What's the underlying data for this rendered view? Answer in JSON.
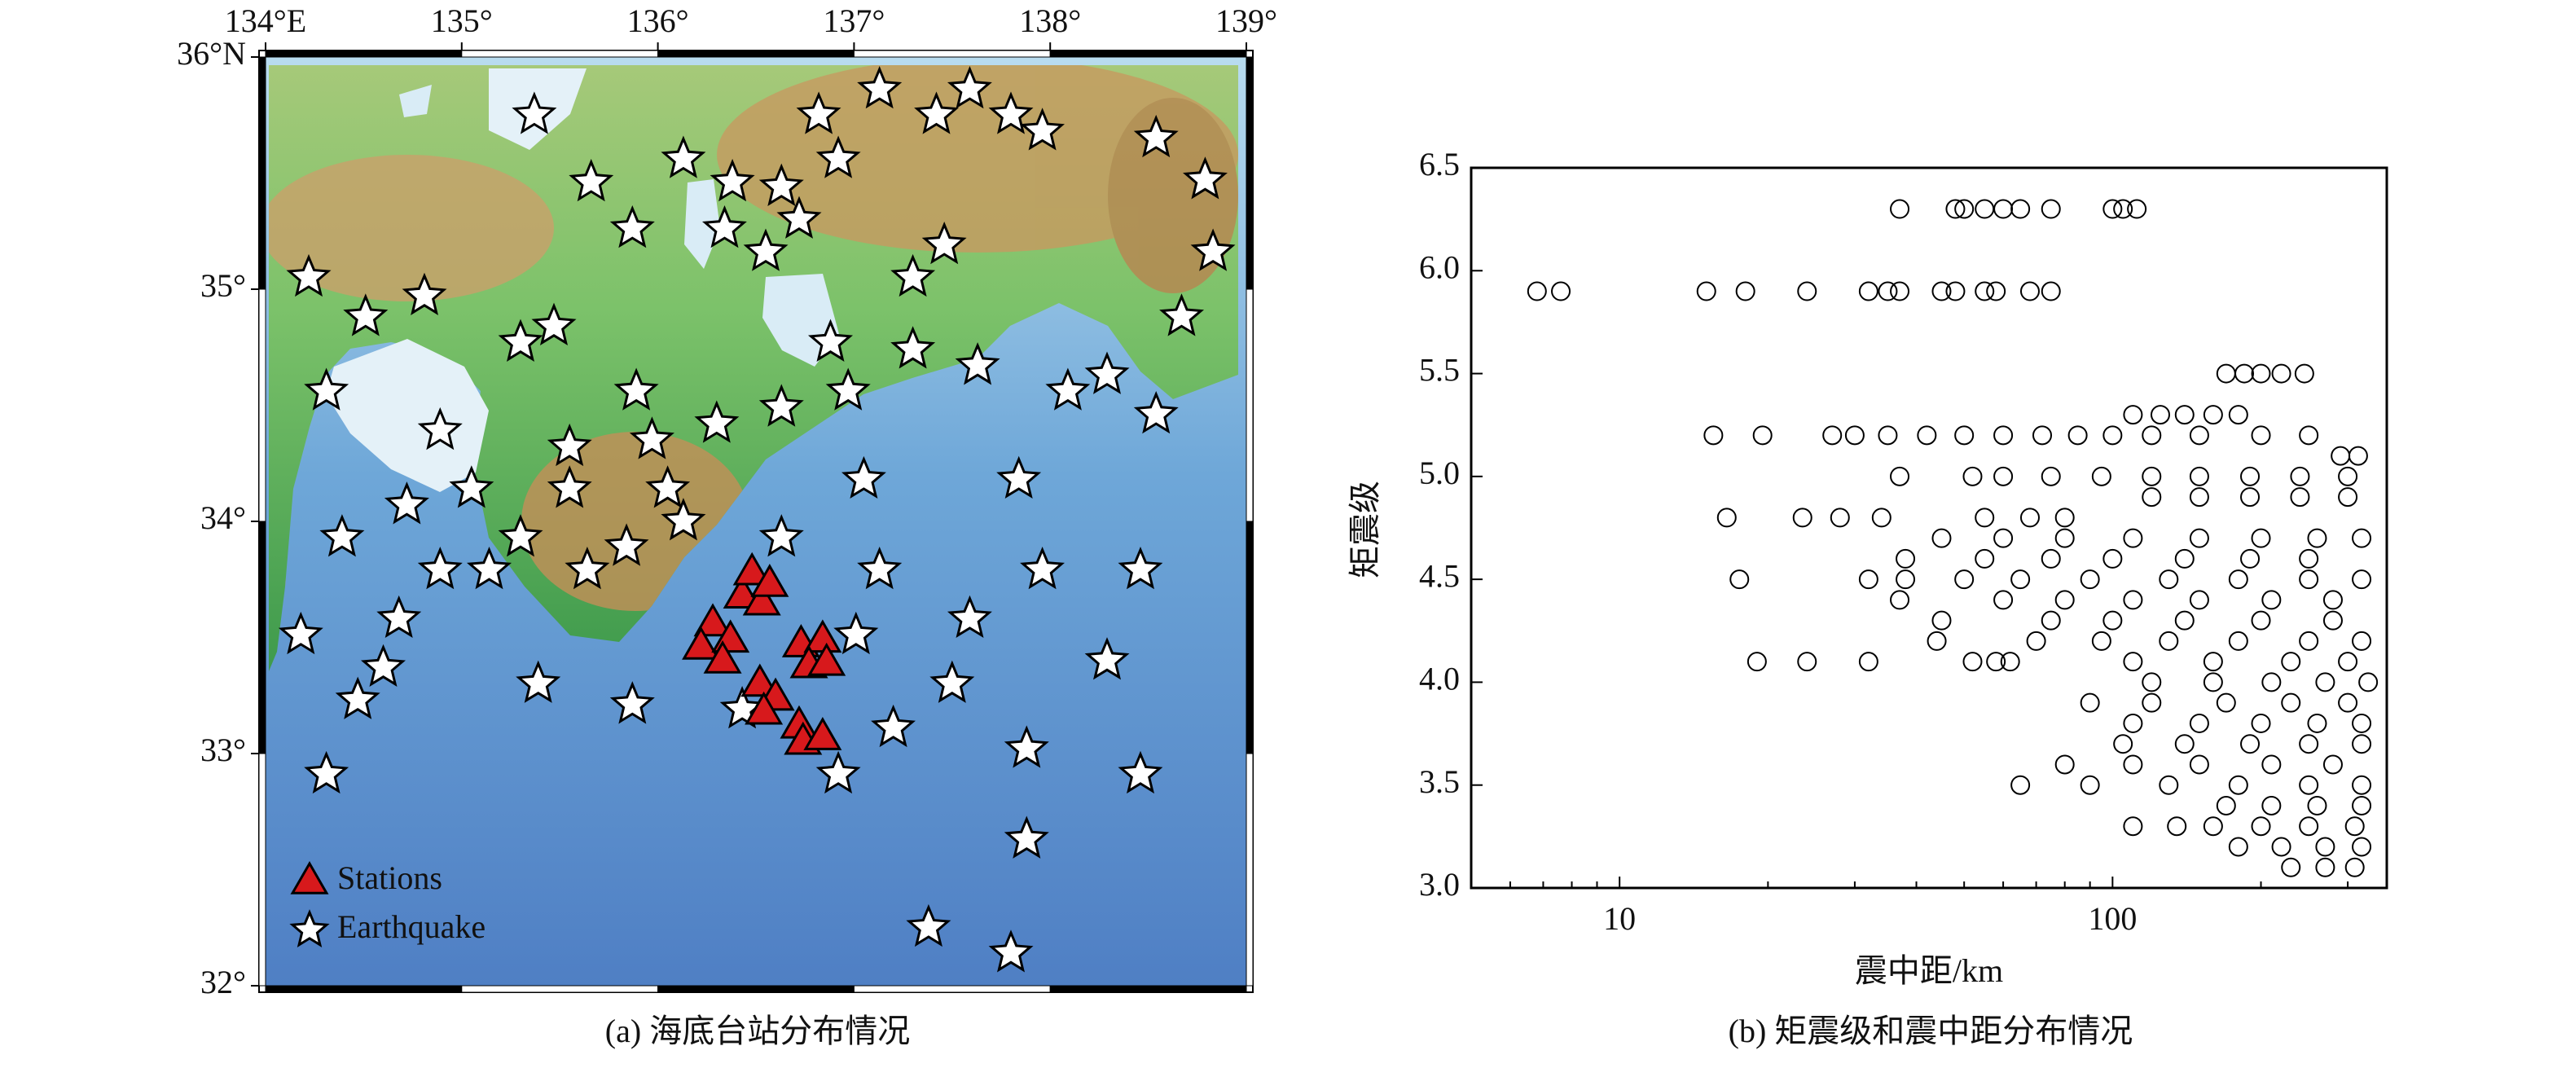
{
  "chart_data": [
    {
      "type": "map",
      "caption": "(a) 海底台站分布情况",
      "xlim": [
        134,
        139
      ],
      "ylim": [
        32,
        36
      ],
      "xticks": [
        {
          "value": 134,
          "label": "134°E"
        },
        {
          "value": 135,
          "label": "135°"
        },
        {
          "value": 136,
          "label": "136°"
        },
        {
          "value": 137,
          "label": "137°"
        },
        {
          "value": 138,
          "label": "138°"
        },
        {
          "value": 139,
          "label": "139°"
        }
      ],
      "yticks": [
        {
          "value": 32,
          "label": "32°"
        },
        {
          "value": 33,
          "label": "33°"
        },
        {
          "value": 34,
          "label": "34°"
        },
        {
          "value": 35,
          "label": "35°"
        },
        {
          "value": 36,
          "label": "36°N"
        }
      ],
      "series": [
        {
          "name": "Stations",
          "color": "#d7191c",
          "marker": "triangle",
          "x": [
            136.28,
            136.22,
            136.37,
            136.33,
            136.43,
            136.48,
            136.53,
            136.57,
            136.52,
            136.6,
            136.54,
            136.73,
            136.84,
            136.77,
            136.86,
            136.72,
            136.74,
            136.84
          ],
          "y": [
            33.56,
            33.46,
            33.49,
            33.4,
            33.68,
            33.78,
            33.65,
            33.73,
            33.3,
            33.24,
            33.18,
            33.47,
            33.49,
            33.38,
            33.39,
            33.12,
            33.05,
            33.07
          ]
        },
        {
          "name": "Earthquake",
          "color": "#ffffff",
          "marker": "star",
          "x": [
            135.37,
            135.66,
            135.87,
            136.13,
            136.38,
            136.63,
            136.92,
            136.82,
            137.13,
            137.42,
            137.59,
            137.8,
            137.96,
            138.54,
            138.79,
            138.83,
            138.67,
            138.54,
            138.29,
            138.09,
            137.84,
            137.96,
            138.46,
            138.29,
            137.88,
            138.46,
            137.88,
            137.38,
            137.8,
            137.2,
            136.92,
            137.5,
            137.59,
            137.01,
            137.13,
            136.63,
            137.05,
            136.97,
            136.88,
            137.3,
            137.63,
            137.3,
            137.46,
            136.72,
            136.55,
            136.34,
            135.89,
            135.97,
            136.05,
            135.84,
            135.55,
            135.3,
            135.05,
            135.14,
            134.89,
            134.68,
            134.6,
            134.47,
            134.31,
            134.18,
            134.22,
            134.51,
            134.81,
            134.89,
            134.72,
            134.39,
            134.31,
            135.39,
            135.87,
            135.64,
            135.47,
            135.3,
            135.55,
            136.3,
            136.63,
            136.13,
            136.43
          ],
          "y": [
            35.75,
            35.46,
            35.26,
            35.56,
            35.46,
            35.44,
            35.56,
            35.75,
            35.86,
            35.75,
            35.86,
            35.75,
            35.68,
            35.65,
            35.47,
            35.16,
            34.88,
            34.46,
            34.63,
            34.56,
            34.18,
            33.79,
            33.79,
            33.4,
            33.02,
            32.91,
            32.63,
            32.25,
            32.14,
            33.11,
            32.91,
            33.3,
            33.58,
            33.51,
            33.79,
            33.93,
            34.18,
            34.56,
            34.77,
            34.74,
            34.67,
            35.05,
            35.19,
            35.3,
            35.16,
            35.26,
            34.56,
            34.35,
            34.14,
            33.89,
            34.14,
            33.93,
            34.14,
            33.79,
            33.79,
            33.58,
            33.37,
            33.23,
            32.91,
            33.51,
            35.05,
            34.88,
            34.97,
            34.39,
            34.07,
            33.93,
            34.56,
            33.3,
            33.21,
            33.79,
            34.84,
            34.77,
            34.32,
            34.42,
            34.49,
            34.0,
            33.19
          ]
        }
      ]
    },
    {
      "type": "scatter",
      "caption": "(b) 矩震级和震中距分布情况",
      "xlabel": "震中距/km",
      "ylabel": "矩震级",
      "xscale": "log",
      "xlim": [
        5,
        360
      ],
      "xticks": [
        10,
        100
      ],
      "xminorticks": [
        6,
        7,
        8,
        9,
        20,
        30,
        40,
        50,
        60,
        70,
        80,
        90,
        200,
        300
      ],
      "ylim": [
        3,
        6.5
      ],
      "yticks": [
        {
          "value": 3,
          "label": "3.0"
        },
        {
          "value": 3.5,
          "label": "3.5"
        },
        {
          "value": 4,
          "label": "4.0"
        },
        {
          "value": 4.5,
          "label": "4.5"
        },
        {
          "value": 5,
          "label": "5.0"
        },
        {
          "value": 5.5,
          "label": "5.5"
        },
        {
          "value": 6,
          "label": "6.0"
        },
        {
          "value": 6.5,
          "label": "6.5"
        }
      ],
      "marker": "circle",
      "color": "#000000",
      "x": [
        37,
        48,
        50,
        55,
        60,
        65,
        75,
        100,
        105,
        112,
        6.8,
        7.6,
        15,
        18,
        24,
        32,
        35,
        37,
        45,
        48,
        55,
        58,
        68,
        75,
        170,
        185,
        200,
        220,
        245,
        110,
        125,
        140,
        160,
        180,
        15.5,
        19.5,
        27,
        30,
        35,
        42,
        50,
        60,
        72,
        85,
        100,
        120,
        150,
        200,
        250,
        290,
        315,
        37,
        52,
        60,
        75,
        95,
        120,
        150,
        190,
        240,
        300,
        120,
        150,
        190,
        240,
        300,
        16.5,
        23.5,
        28,
        34,
        55,
        68,
        80,
        45,
        60,
        80,
        110,
        150,
        200,
        260,
        320,
        38,
        55,
        75,
        100,
        140,
        190,
        250,
        17.5,
        32,
        38,
        50,
        65,
        90,
        130,
        180,
        250,
        320,
        37,
        60,
        80,
        110,
        150,
        210,
        280,
        45,
        75,
        100,
        140,
        200,
        280,
        44,
        70,
        95,
        130,
        180,
        250,
        320,
        19,
        24,
        32,
        52,
        58,
        62,
        110,
        160,
        230,
        300,
        120,
        160,
        210,
        270,
        330,
        90,
        120,
        170,
        230,
        300,
        110,
        150,
        200,
        260,
        320,
        105,
        140,
        190,
        250,
        320,
        80,
        110,
        150,
        210,
        280,
        65,
        90,
        130,
        180,
        250,
        320,
        170,
        210,
        260,
        320,
        110,
        135,
        160,
        200,
        250,
        310,
        180,
        220,
        270,
        320,
        230,
        270,
        310
      ],
      "y": [
        6.3,
        6.3,
        6.3,
        6.3,
        6.3,
        6.3,
        6.3,
        6.3,
        6.3,
        6.3,
        5.9,
        5.9,
        5.9,
        5.9,
        5.9,
        5.9,
        5.9,
        5.9,
        5.9,
        5.9,
        5.9,
        5.9,
        5.9,
        5.9,
        5.5,
        5.5,
        5.5,
        5.5,
        5.5,
        5.3,
        5.3,
        5.3,
        5.3,
        5.3,
        5.2,
        5.2,
        5.2,
        5.2,
        5.2,
        5.2,
        5.2,
        5.2,
        5.2,
        5.2,
        5.2,
        5.2,
        5.2,
        5.2,
        5.2,
        5.1,
        5.1,
        5.0,
        5.0,
        5.0,
        5.0,
        5.0,
        5.0,
        5.0,
        5.0,
        5.0,
        5.0,
        4.9,
        4.9,
        4.9,
        4.9,
        4.9,
        4.8,
        4.8,
        4.8,
        4.8,
        4.8,
        4.8,
        4.8,
        4.7,
        4.7,
        4.7,
        4.7,
        4.7,
        4.7,
        4.7,
        4.7,
        4.6,
        4.6,
        4.6,
        4.6,
        4.6,
        4.6,
        4.6,
        4.5,
        4.5,
        4.5,
        4.5,
        4.5,
        4.5,
        4.5,
        4.5,
        4.5,
        4.5,
        4.4,
        4.4,
        4.4,
        4.4,
        4.4,
        4.4,
        4.4,
        4.3,
        4.3,
        4.3,
        4.3,
        4.3,
        4.3,
        4.2,
        4.2,
        4.2,
        4.2,
        4.2,
        4.2,
        4.2,
        4.1,
        4.1,
        4.1,
        4.1,
        4.1,
        4.1,
        4.1,
        4.1,
        4.1,
        4.1,
        4.0,
        4.0,
        4.0,
        4.0,
        4.0,
        3.9,
        3.9,
        3.9,
        3.9,
        3.9,
        3.8,
        3.8,
        3.8,
        3.8,
        3.8,
        3.7,
        3.7,
        3.7,
        3.7,
        3.7,
        3.6,
        3.6,
        3.6,
        3.6,
        3.6,
        3.5,
        3.5,
        3.5,
        3.5,
        3.5,
        3.5,
        3.4,
        3.4,
        3.4,
        3.4,
        3.3,
        3.3,
        3.3,
        3.3,
        3.3,
        3.3,
        3.2,
        3.2,
        3.2,
        3.2,
        3.1,
        3.1,
        3.1
      ]
    }
  ]
}
